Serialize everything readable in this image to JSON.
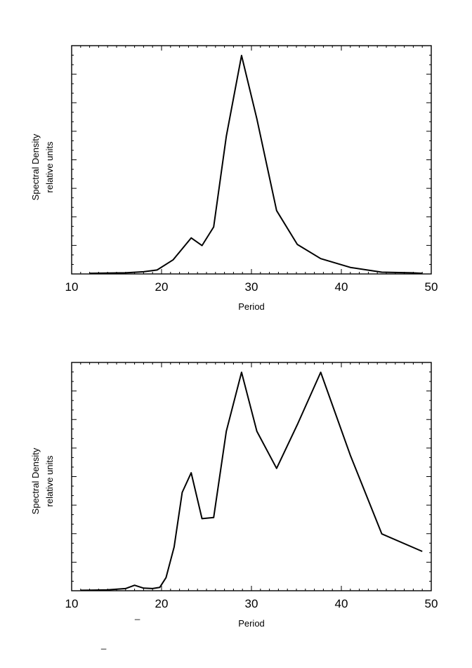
{
  "chart_data": [
    {
      "type": "line",
      "title": "",
      "xlabel": "Period",
      "ylabel": "Spectral Density",
      "ylabel_units": "relative units",
      "xlim": [
        10,
        50
      ],
      "ylim": [
        0,
        1.0
      ],
      "xticks": [
        "10",
        "20",
        "30",
        "40",
        "50"
      ],
      "y_tick_labels_shown": false,
      "grid": false,
      "series": [
        {
          "x": [
            12,
            14,
            16,
            18,
            19.5,
            21.3,
            23.3,
            24.5,
            25.8,
            27.2,
            28.9,
            30.6,
            32.8,
            35.1,
            37.7,
            41,
            44.5,
            47.8,
            49
          ],
          "y": [
            0.003,
            0.004,
            0.005,
            0.01,
            0.018,
            0.065,
            0.165,
            0.13,
            0.215,
            0.63,
            1.0,
            0.71,
            0.29,
            0.135,
            0.07,
            0.03,
            0.008,
            0.005,
            0.003
          ]
        }
      ]
    },
    {
      "type": "line",
      "title": "",
      "xlabel": "Period",
      "ylabel": "Spectral Density",
      "ylabel_units": "relative units",
      "xlim": [
        10,
        50
      ],
      "ylim": [
        0,
        1.0
      ],
      "xticks": [
        "10",
        "20",
        "30",
        "40",
        "50"
      ],
      "y_tick_labels_shown": false,
      "grid": false,
      "series": [
        {
          "x": [
            11,
            14,
            16,
            17,
            18,
            19,
            19.8,
            20.5,
            21.4,
            22.3,
            23.3,
            24.5,
            25.8,
            27.2,
            28.9,
            30.6,
            32.8,
            35.1,
            37.7,
            41,
            44.5,
            49
          ],
          "y": [
            0.002,
            0.004,
            0.01,
            0.025,
            0.012,
            0.01,
            0.015,
            0.06,
            0.2,
            0.45,
            0.54,
            0.33,
            0.335,
            0.73,
            1.0,
            0.73,
            0.56,
            0.76,
            1.0,
            0.62,
            0.26,
            0.18
          ]
        }
      ]
    }
  ],
  "stray_marks": [
    "_",
    "_"
  ]
}
